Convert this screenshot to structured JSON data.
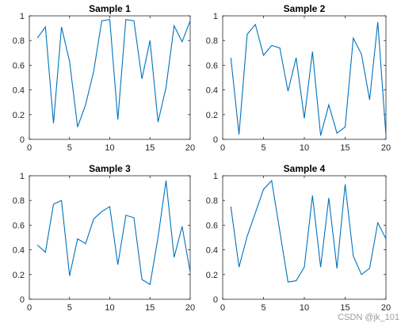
{
  "chart_data": [
    {
      "type": "line",
      "title": "Sample 1",
      "xlabel": "",
      "ylabel": "",
      "xlim": [
        0,
        20
      ],
      "ylim": [
        0,
        1
      ],
      "xticks": [
        0,
        5,
        10,
        15,
        20
      ],
      "yticks": [
        0,
        0.2,
        0.4,
        0.6,
        0.8,
        1
      ],
      "grid": false,
      "color": "#0072BD",
      "x": [
        1,
        2,
        3,
        4,
        5,
        6,
        7,
        8,
        9,
        10,
        11,
        12,
        13,
        14,
        15,
        16,
        17,
        18,
        19,
        20
      ],
      "y": [
        0.82,
        0.91,
        0.13,
        0.91,
        0.63,
        0.1,
        0.28,
        0.55,
        0.96,
        0.97,
        0.16,
        0.97,
        0.96,
        0.49,
        0.8,
        0.14,
        0.42,
        0.92,
        0.79,
        0.96
      ]
    },
    {
      "type": "line",
      "title": "Sample 2",
      "xlabel": "",
      "ylabel": "",
      "xlim": [
        0,
        20
      ],
      "ylim": [
        0,
        1
      ],
      "xticks": [
        0,
        5,
        10,
        15,
        20
      ],
      "yticks": [
        0,
        0.2,
        0.4,
        0.6,
        0.8,
        1
      ],
      "grid": false,
      "color": "#0072BD",
      "x": [
        1,
        2,
        3,
        4,
        5,
        6,
        7,
        8,
        9,
        10,
        11,
        12,
        13,
        14,
        15,
        16,
        17,
        18,
        19,
        20
      ],
      "y": [
        0.66,
        0.04,
        0.85,
        0.93,
        0.68,
        0.76,
        0.74,
        0.39,
        0.66,
        0.17,
        0.71,
        0.03,
        0.28,
        0.05,
        0.1,
        0.82,
        0.69,
        0.32,
        0.95,
        0.03
      ]
    },
    {
      "type": "line",
      "title": "Sample 3",
      "xlabel": "",
      "ylabel": "",
      "xlim": [
        0,
        20
      ],
      "ylim": [
        0,
        1
      ],
      "xticks": [
        0,
        5,
        10,
        15,
        20
      ],
      "yticks": [
        0,
        0.2,
        0.4,
        0.6,
        0.8,
        1
      ],
      "grid": false,
      "color": "#0072BD",
      "x": [
        1,
        2,
        3,
        4,
        5,
        6,
        7,
        8,
        9,
        10,
        11,
        12,
        13,
        14,
        15,
        16,
        17,
        18,
        19,
        20
      ],
      "y": [
        0.44,
        0.38,
        0.77,
        0.8,
        0.19,
        0.49,
        0.45,
        0.65,
        0.71,
        0.75,
        0.28,
        0.68,
        0.66,
        0.16,
        0.12,
        0.5,
        0.96,
        0.34,
        0.59,
        0.22
      ]
    },
    {
      "type": "line",
      "title": "Sample 4",
      "xlabel": "",
      "ylabel": "",
      "xlim": [
        0,
        20
      ],
      "ylim": [
        0,
        1
      ],
      "xticks": [
        0,
        5,
        10,
        15,
        20
      ],
      "yticks": [
        0,
        0.2,
        0.4,
        0.6,
        0.8,
        1
      ],
      "grid": false,
      "color": "#0072BD",
      "x": [
        1,
        2,
        3,
        4,
        5,
        6,
        7,
        8,
        9,
        10,
        11,
        12,
        13,
        14,
        15,
        16,
        17,
        18,
        19,
        20
      ],
      "y": [
        0.75,
        0.26,
        0.51,
        0.7,
        0.89,
        0.96,
        0.55,
        0.14,
        0.15,
        0.26,
        0.84,
        0.26,
        0.82,
        0.25,
        0.93,
        0.35,
        0.2,
        0.25,
        0.62,
        0.49
      ]
    }
  ],
  "watermark": "CSDN @jk_101"
}
